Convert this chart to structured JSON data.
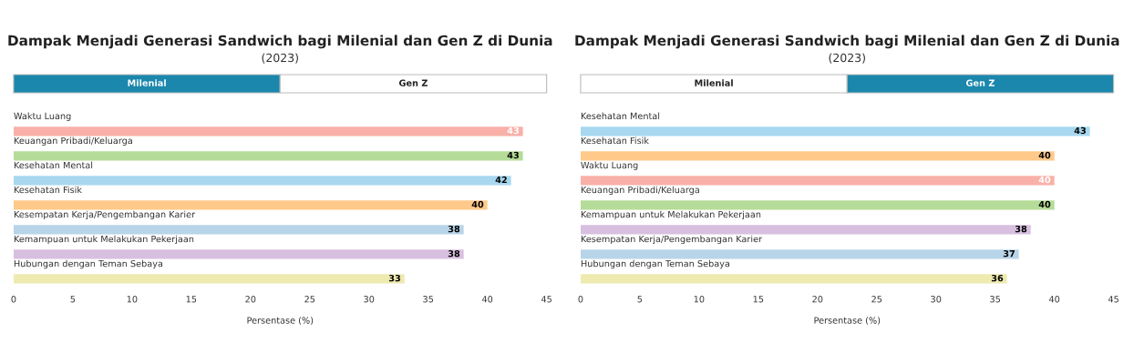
{
  "chart_data": [
    {
      "type": "bar",
      "orientation": "horizontal",
      "title": "Dampak Menjadi Generasi Sandwich bagi Milenial dan Gen Z di Dunia",
      "subtitle": "(2023)",
      "xlabel": "Persentase (%)",
      "annotations": [
        "Milenial",
        "Gen Z"
      ],
      "categories": [
        "Waktu Luang",
        "Keuangan Pribadi/Keluarga",
        "Kesehatan Mental",
        "Kesehatan Fisik",
        "Kesempatan Kerja/Pengembangan Karier",
        "Kemampuan untuk Melakukan Pekerjaan",
        "Hubungan dengan Teman Sebaya"
      ],
      "values": [
        43,
        43,
        42,
        40,
        38,
        38,
        33
      ],
      "colors": [
        "#f8b0a8",
        "#b5dc98",
        "#a8d8f0",
        "#ffc98a",
        "#b8d4e8",
        "#d8bfe0",
        "#eeeab0"
      ],
      "xlim": [
        0,
        45
      ],
      "xticks": [
        0,
        5,
        10,
        15,
        20,
        25,
        30,
        35,
        40,
        45
      ],
      "data_labels": true,
      "grid": false,
      "legend": false
    },
    {
      "type": "bar",
      "orientation": "horizontal",
      "title": "Dampak Menjadi Generasi Sandwich bagi Milenial dan Gen Z di Dunia",
      "subtitle": "(2023)",
      "xlabel": "Persentase (%)",
      "annotations": [
        "Milenial",
        "Gen Z"
      ],
      "categories": [
        "Kesehatan Mental",
        "Kesehatan Fisik",
        "Waktu Luang",
        "Keuangan Pribadi/Keluarga",
        "Kemampuan untuk Melakukan Pekerjaan",
        "Kesempatan Kerja/Pengembangan Karier",
        "Hubungan dengan Teman Sebaya"
      ],
      "values": [
        43,
        40,
        40,
        40,
        38,
        37,
        36
      ],
      "colors": [
        "#a8d8f0",
        "#ffc98a",
        "#f8b0a8",
        "#b5dc98",
        "#d8bfe0",
        "#b8d4e8",
        "#eeeab0"
      ],
      "xlim": [
        0,
        45
      ],
      "xticks": [
        0,
        5,
        10,
        15,
        20,
        25,
        30,
        35,
        40,
        45
      ],
      "data_labels": true,
      "grid": false,
      "legend": false
    }
  ]
}
